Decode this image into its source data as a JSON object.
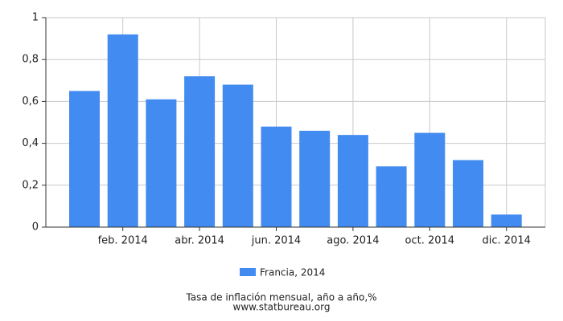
{
  "chart_data": {
    "type": "bar",
    "categories": [
      null,
      "feb. 2014",
      null,
      "abr. 2014",
      null,
      "jun. 2014",
      null,
      "ago. 2014",
      null,
      "oct. 2014",
      null,
      "dic. 2014"
    ],
    "series": [
      {
        "name": "Francia, 2014",
        "color": "#428bf0",
        "values": [
          0.65,
          0.92,
          0.61,
          0.72,
          0.68,
          0.48,
          0.46,
          0.44,
          0.29,
          0.45,
          0.32,
          0.06
        ]
      }
    ],
    "ylim": [
      0,
      1
    ],
    "yticks": [
      0,
      {
        "value": 0.2,
        "label": "0,2"
      },
      {
        "value": 0.4,
        "label": "0,4"
      },
      {
        "value": 0.6,
        "label": "0,6"
      },
      {
        "value": 0.8,
        "label": "0,8"
      },
      1
    ],
    "grid": true,
    "legend": "bottom",
    "caption": "Tasa de inflación mensual, año a año,%",
    "source": "www.statbureau.org"
  }
}
